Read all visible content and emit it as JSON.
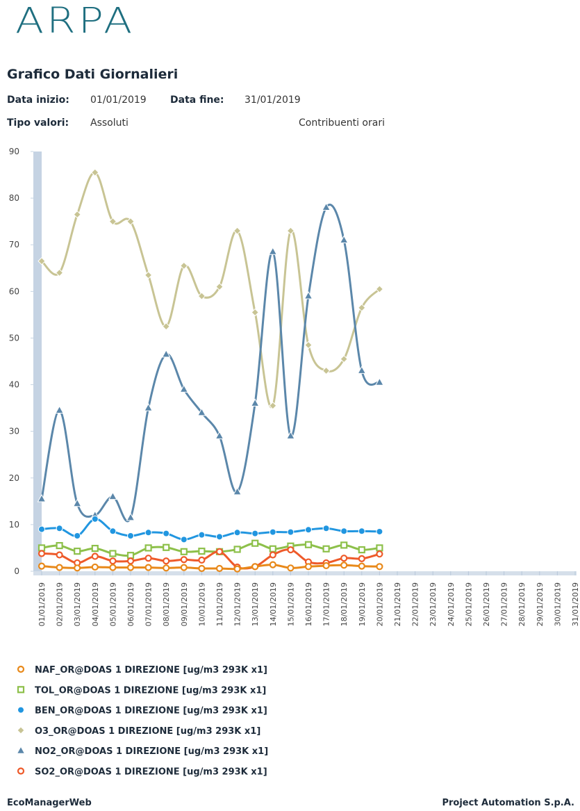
{
  "header": {
    "logo": "ARPA",
    "title": "Grafico Dati Giornalieri",
    "start_label": "Data inizio:",
    "start_value": "01/01/2019",
    "end_label": "Data fine:",
    "end_value": "31/01/2019",
    "type_label": "Tipo valori:",
    "type_value": "Assoluti",
    "option": "Contribuenti orari"
  },
  "chart_data": {
    "type": "line",
    "categories": [
      "01/01/2019",
      "02/01/2019",
      "03/01/2019",
      "04/01/2019",
      "05/01/2019",
      "06/01/2019",
      "07/01/2019",
      "08/01/2019",
      "09/01/2019",
      "10/01/2019",
      "11/01/2019",
      "12/01/2019",
      "13/01/2019",
      "14/01/2019",
      "15/01/2019",
      "16/01/2019",
      "17/01/2019",
      "18/01/2019",
      "19/01/2019",
      "20/01/2019",
      "21/01/2019",
      "22/01/2019",
      "23/01/2019",
      "24/01/2019",
      "25/01/2019",
      "26/01/2019",
      "27/01/2019",
      "28/01/2019",
      "29/01/2019",
      "30/01/2019",
      "31/01/2019"
    ],
    "ylim": [
      0,
      90
    ],
    "yticks": [
      0,
      10,
      20,
      30,
      40,
      50,
      60,
      70,
      80,
      90
    ],
    "grid": false,
    "series": [
      {
        "name": "NAF_OR@DOAS 1 DIREZIONE [ug/m3 293K x1]",
        "color": "#e8891a",
        "marker": "circle-open",
        "values": [
          1.1,
          0.8,
          0.7,
          0.9,
          0.8,
          0.8,
          0.8,
          0.7,
          0.8,
          0.6,
          0.6,
          0.5,
          1,
          1.4,
          0.7,
          1,
          1.2,
          1.3,
          1.1,
          1,
          null,
          null,
          null,
          null,
          null,
          null,
          null,
          null,
          null,
          null,
          null
        ]
      },
      {
        "name": "TOL_OR@DOAS 1 DIREZIONE [ug/m3 293K x1]",
        "color": "#8dc04a",
        "marker": "square-open",
        "values": [
          5,
          5.5,
          4.3,
          4.9,
          3.8,
          3.4,
          5,
          5.1,
          4.2,
          4.3,
          4.2,
          4.7,
          6,
          4.8,
          5.4,
          5.7,
          4.8,
          5.6,
          4.6,
          5,
          null,
          null,
          null,
          null,
          null,
          null,
          null,
          null,
          null,
          null,
          null
        ]
      },
      {
        "name": "BEN_OR@DOAS 1 DIREZIONE [ug/m3 293K x1]",
        "color": "#2196e0",
        "marker": "circle",
        "values": [
          9,
          9.2,
          7.6,
          11.2,
          8.6,
          7.6,
          8.3,
          8.1,
          6.8,
          7.8,
          7.4,
          8.3,
          8.1,
          8.4,
          8.4,
          8.9,
          9.2,
          8.6,
          8.6,
          8.5,
          null,
          null,
          null,
          null,
          null,
          null,
          null,
          null,
          null,
          null,
          null
        ]
      },
      {
        "name": "O3_OR@DOAS 1 DIREZIONE [ug/m3 293K x1]",
        "color": "#c8c494",
        "marker": "diamond",
        "values": [
          66.5,
          64,
          76.5,
          85.5,
          75,
          75,
          63.5,
          52.5,
          65.5,
          59,
          61,
          73,
          55.5,
          35.5,
          73,
          48.5,
          43,
          45.5,
          56.5,
          60.5,
          null,
          null,
          null,
          null,
          null,
          null,
          null,
          null,
          null,
          null,
          null
        ]
      },
      {
        "name": "NO2_OR@DOAS 1 DIREZIONE [ug/m3 293K x1]",
        "color": "#5b87aa",
        "marker": "triangle",
        "values": [
          15.5,
          34.5,
          14.5,
          12,
          16,
          11.5,
          35,
          46.5,
          39,
          34,
          29,
          17,
          36,
          68.5,
          29,
          59,
          78,
          71,
          43,
          40.5,
          null,
          null,
          null,
          null,
          null,
          null,
          null,
          null,
          null,
          null,
          null
        ]
      },
      {
        "name": "SO2_OR@DOAS 1 DIREZIONE [ug/m3 293K x1]",
        "color": "#ee5a2a",
        "marker": "circle-open",
        "values": [
          3.8,
          3.5,
          1.8,
          3.2,
          2.2,
          2.2,
          2.8,
          2.2,
          2.5,
          2.4,
          4.2,
          0.9,
          1,
          3.5,
          4.6,
          2,
          1.8,
          2.8,
          2.7,
          3.7,
          null,
          null,
          null,
          null,
          null,
          null,
          null,
          null,
          null,
          null,
          null
        ]
      }
    ]
  },
  "footer": {
    "left": "EcoManagerWeb",
    "right": "Project Automation S.p.A."
  }
}
